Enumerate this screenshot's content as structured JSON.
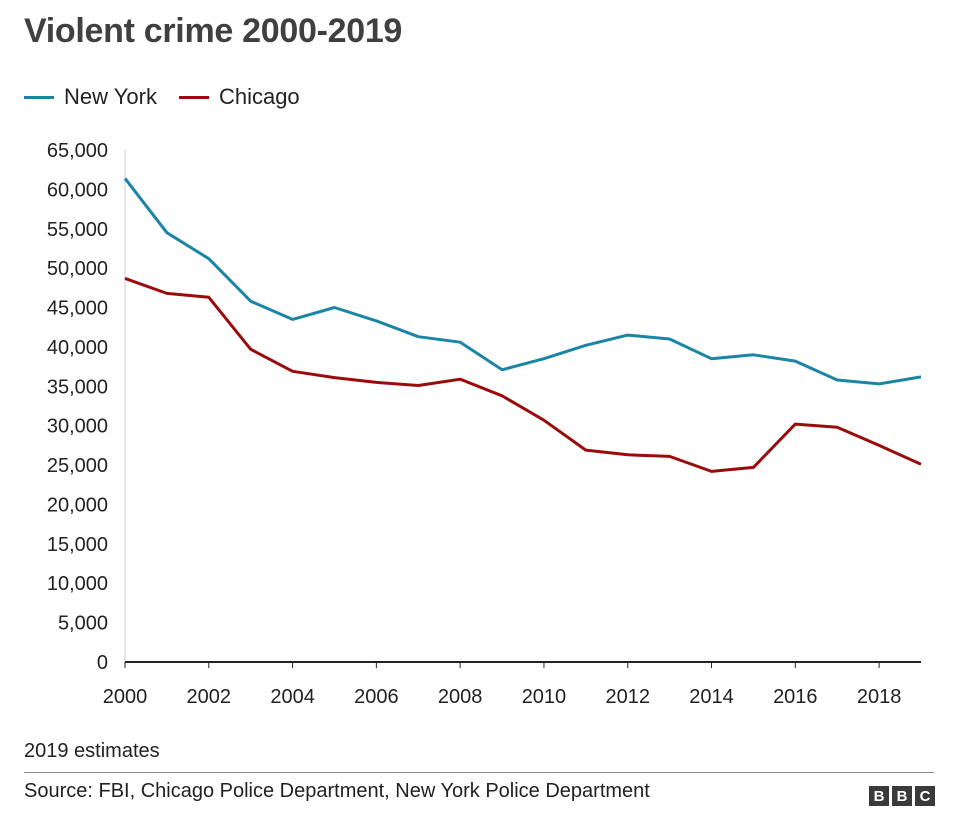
{
  "title": "Violent crime 2000-2019",
  "note": "2019 estimates",
  "source": "Source: FBI, Chicago Police Department, New York Police Department",
  "logo": [
    "B",
    "B",
    "C"
  ],
  "chart_data": {
    "type": "line",
    "title": "Violent crime 2000-2019",
    "xlabel": "",
    "ylabel": "",
    "x": [
      2000,
      2001,
      2002,
      2003,
      2004,
      2005,
      2006,
      2007,
      2008,
      2009,
      2010,
      2011,
      2012,
      2013,
      2014,
      2015,
      2016,
      2017,
      2018,
      2019
    ],
    "xlim": [
      2000,
      2019
    ],
    "ylim": [
      0,
      65000
    ],
    "x_ticks": [
      "2000",
      "2002",
      "2004",
      "2006",
      "2008",
      "2010",
      "2012",
      "2014",
      "2016",
      "2018"
    ],
    "y_ticks": [
      "0",
      "5,000",
      "10,000",
      "15,000",
      "20,000",
      "25,000",
      "30,000",
      "35,000",
      "40,000",
      "45,000",
      "50,000",
      "55,000",
      "60,000",
      "65,000"
    ],
    "grid": false,
    "legend_position": "top-left",
    "series": [
      {
        "name": "New York",
        "color": "#1b85a6",
        "values": [
          61400,
          54500,
          51200,
          45800,
          43500,
          45000,
          43300,
          41300,
          40600,
          37100,
          38500,
          40200,
          41500,
          41000,
          38500,
          39000,
          38200,
          35800,
          35300,
          36200
        ]
      },
      {
        "name": "Chicago",
        "color": "#9a0c0c",
        "values": [
          48700,
          46800,
          46300,
          39700,
          36900,
          36100,
          35500,
          35100,
          35900,
          33800,
          30700,
          26900,
          26300,
          26100,
          24200,
          24700,
          30200,
          29800,
          27500,
          25100
        ]
      }
    ]
  }
}
